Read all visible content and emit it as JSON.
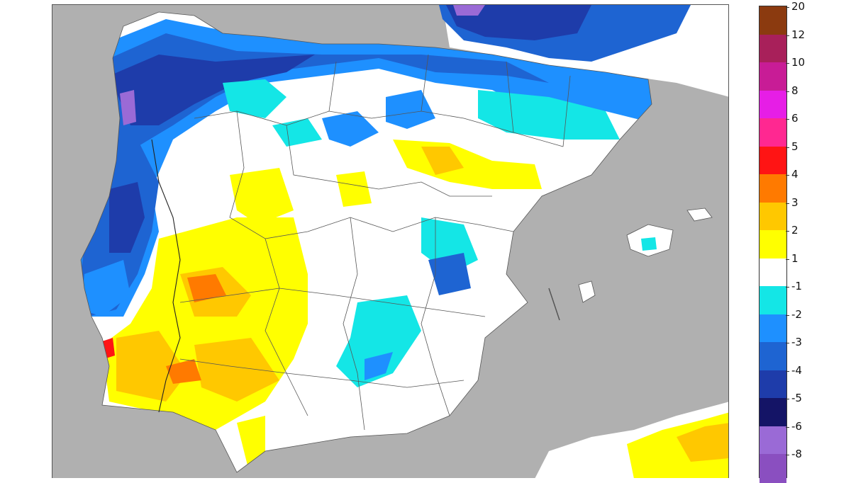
{
  "map": {
    "colors": {
      "sea": "#b0b0b0",
      "land_neutral": "#ffffff",
      "borders": "#555555"
    }
  },
  "legend": {
    "bins": [
      {
        "label": "20",
        "color": "#8b3a0f"
      },
      {
        "label": "12",
        "color": "#a8205a"
      },
      {
        "label": "10",
        "color": "#c81c96"
      },
      {
        "label": "8",
        "color": "#e61ee6"
      },
      {
        "label": "6",
        "color": "#ff2891"
      },
      {
        "label": "5",
        "color": "#ff1414"
      },
      {
        "label": "4",
        "color": "#ff7a00"
      },
      {
        "label": "3",
        "color": "#ffc800"
      },
      {
        "label": "2",
        "color": "#ffff00"
      },
      {
        "label": "1",
        "color": "#ffffff"
      },
      {
        "label": "-1",
        "color": "#14e6e6"
      },
      {
        "label": "-2",
        "color": "#1e90ff"
      },
      {
        "label": "-3",
        "color": "#1e64d2"
      },
      {
        "label": "-4",
        "color": "#1e3caa"
      },
      {
        "label": "-5",
        "color": "#141466"
      },
      {
        "label": "-6",
        "color": "#9a6ad6"
      },
      {
        "label": "-8",
        "color": "#8a4fc0"
      }
    ]
  }
}
